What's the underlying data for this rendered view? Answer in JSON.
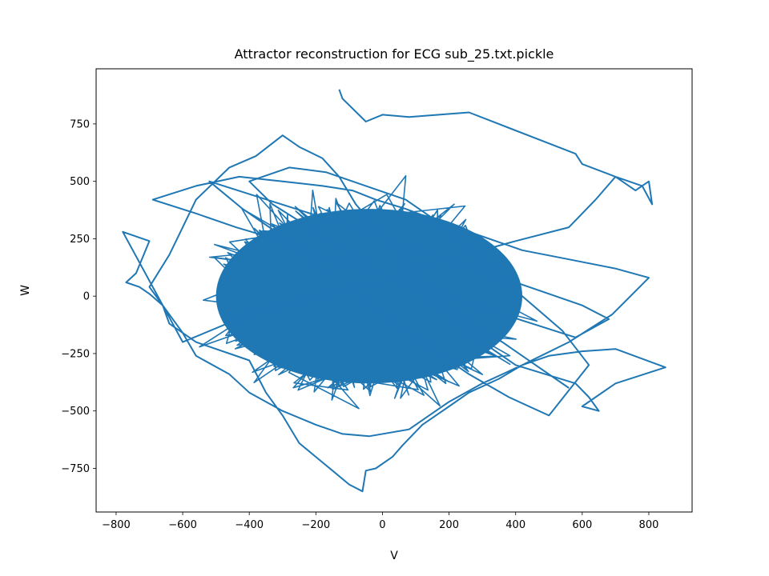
{
  "chart_data": {
    "type": "line",
    "title": "Attractor reconstruction for ECG sub_25.txt.pickle",
    "xlabel": "V",
    "ylabel": "W",
    "xlim": [
      -860,
      930
    ],
    "ylim": [
      -940,
      990
    ],
    "xticks": [
      -800,
      -600,
      -400,
      -200,
      0,
      200,
      400,
      600,
      800
    ],
    "xtick_labels": [
      "−800",
      "−600",
      "−400",
      "−200",
      "0",
      "200",
      "400",
      "600",
      "800"
    ],
    "yticks": [
      -750,
      -500,
      -250,
      0,
      250,
      500,
      750
    ],
    "ytick_labels": [
      "−750",
      "−500",
      "−250",
      "0",
      "250",
      "500",
      "750"
    ],
    "grid": false,
    "legend": "none",
    "line_color": "#1f77b4",
    "series": [
      {
        "x": [
          -130,
          -120,
          -50,
          0,
          80,
          260,
          580,
          600,
          700,
          780,
          810,
          800,
          760,
          700,
          640,
          560,
          400,
          250,
          100,
          0,
          -200,
          -400,
          -600,
          -780,
          -700,
          -740,
          -770,
          -730,
          -700,
          -660,
          -640,
          -560,
          -400,
          -350,
          -300,
          -250,
          -200,
          -150,
          -100,
          -60,
          -50,
          -20,
          30,
          60,
          120,
          200,
          260,
          350,
          420,
          500,
          600,
          700,
          850,
          700,
          600,
          650,
          620,
          580,
          400,
          300,
          200,
          150,
          100,
          40,
          -20,
          -80,
          -130,
          -180,
          -250,
          -300,
          -380,
          -460,
          -560,
          -600,
          -640,
          -700,
          -650,
          -600,
          -560,
          -460,
          -400,
          -300,
          -200,
          -120,
          -40,
          80,
          140,
          200,
          300,
          420,
          560,
          690,
          800,
          700,
          560,
          420,
          300,
          180,
          70,
          -20,
          -90,
          -180,
          -300,
          -430,
          -560,
          -690,
          -560,
          -440,
          -300,
          -200,
          -60,
          80,
          200,
          320,
          450,
          580,
          680,
          600,
          480,
          360,
          240,
          110,
          -10,
          -130,
          -260,
          -390,
          -520,
          -420,
          -300,
          -200,
          -90,
          20,
          140,
          260,
          380,
          500,
          620,
          540,
          420,
          300,
          190,
          70,
          -50,
          -170,
          -280,
          -400,
          -330,
          -220,
          -120,
          0,
          120,
          240,
          360,
          460,
          560
        ],
        "y": [
          900,
          860,
          760,
          790,
          780,
          800,
          620,
          575,
          520,
          480,
          400,
          500,
          460,
          520,
          420,
          300,
          240,
          180,
          120,
          60,
          0,
          -80,
          -200,
          280,
          240,
          100,
          60,
          40,
          10,
          -40,
          -120,
          -200,
          -280,
          -420,
          -520,
          -640,
          -700,
          -760,
          -820,
          -850,
          -760,
          -750,
          -700,
          -650,
          -560,
          -480,
          -420,
          -360,
          -300,
          -260,
          -240,
          -230,
          -310,
          -380,
          -480,
          -500,
          -440,
          -380,
          -300,
          -200,
          -100,
          0,
          100,
          200,
          300,
          400,
          520,
          600,
          650,
          700,
          610,
          560,
          420,
          300,
          180,
          40,
          -60,
          -160,
          -260,
          -340,
          -420,
          -500,
          -560,
          -600,
          -610,
          -580,
          -520,
          -460,
          -380,
          -300,
          -200,
          -80,
          80,
          120,
          160,
          200,
          260,
          320,
          380,
          420,
          460,
          480,
          500,
          520,
          480,
          420,
          360,
          300,
          240,
          180,
          120,
          60,
          0,
          -60,
          -120,
          -180,
          -100,
          -40,
          20,
          80,
          140,
          200,
          260,
          320,
          380,
          440,
          500,
          380,
          260,
          140,
          20,
          -100,
          -220,
          -340,
          -440,
          -520,
          -300,
          -150,
          0,
          150,
          300,
          420,
          480,
          540,
          560,
          500,
          400,
          300,
          200,
          100,
          0,
          -100,
          -200,
          -300,
          -400
        ]
      }
    ]
  }
}
